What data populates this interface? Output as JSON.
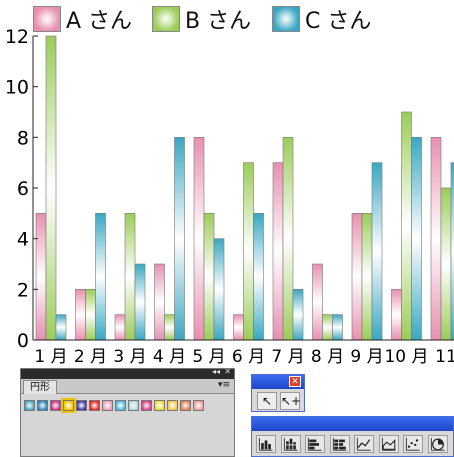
{
  "chart_data": {
    "type": "bar",
    "categories": [
      "1 月",
      "2 月",
      "3 月",
      "4 月",
      "5 月",
      "6 月",
      "7 月",
      "8 月",
      "9 月",
      "10 月",
      "11"
    ],
    "series": [
      {
        "name": "A さん",
        "color": "#e88fb0",
        "values": [
          5,
          2,
          1,
          3,
          8,
          1,
          7,
          3,
          5,
          2,
          8
        ]
      },
      {
        "name": "B さん",
        "color": "#9ccc5a",
        "values": [
          12,
          2,
          5,
          1,
          5,
          7,
          8,
          1,
          5,
          9,
          6
        ]
      },
      {
        "name": "C さん",
        "color": "#3aa7c2",
        "values": [
          1,
          5,
          3,
          8,
          4,
          5,
          2,
          1,
          7,
          8,
          7
        ]
      }
    ],
    "yticks": [
      "0",
      "2",
      "4",
      "6",
      "8",
      "10",
      "12"
    ],
    "ylim": [
      0,
      12
    ],
    "legend_position": "top"
  },
  "swatches_panel": {
    "tab_label": "円形",
    "collapse_glyph": "◂◂",
    "close_glyph": "✕",
    "menu_glyph": "▾≡",
    "swatch_colors": [
      "#3aa7c2",
      "#2a7fb0",
      "#e0207f",
      "#f2c200",
      "#3a2fa0",
      "#e0201f",
      "#f29ab5",
      "#4fb8d8",
      "#a8d8e8",
      "#d13a7f",
      "#f0e020",
      "#f2c84a",
      "#e87b4a",
      "#e8a09a"
    ],
    "selected_index": 3
  },
  "tool_panel": {
    "close_glyph": "✕",
    "direct_select_glyph": "↖",
    "group_select_glyph": "↖+"
  },
  "graph_tools": {
    "icons": [
      "column-graph-icon",
      "stacked-column-graph-icon",
      "bar-graph-icon",
      "stacked-bar-graph-icon",
      "line-graph-icon",
      "area-graph-icon",
      "scatter-graph-icon",
      "pie-graph-icon"
    ]
  }
}
